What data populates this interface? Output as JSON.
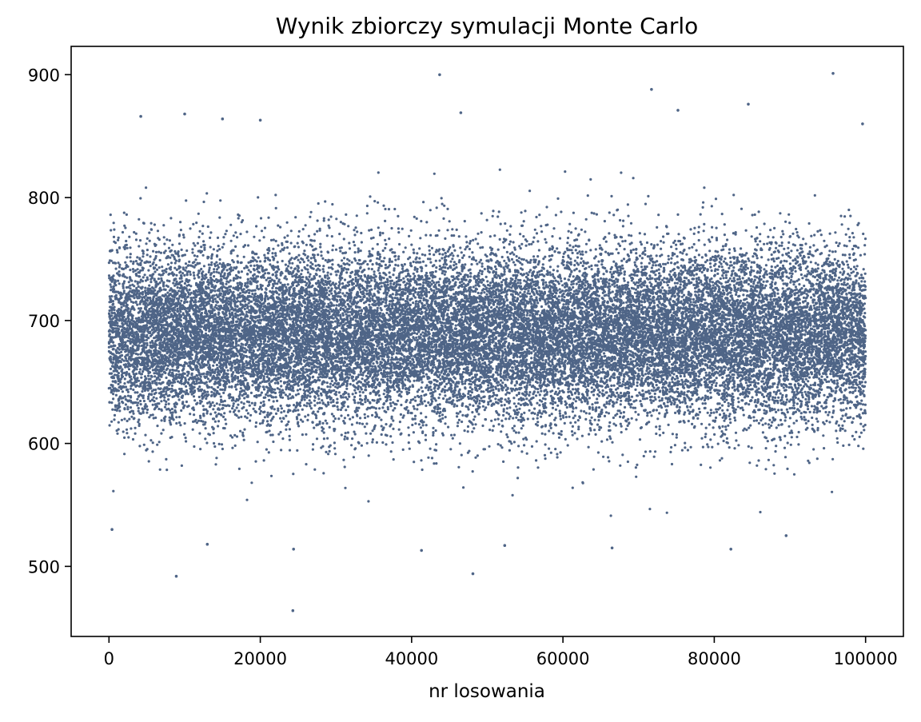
{
  "chart_data": {
    "type": "scatter",
    "title": "Wynik zbiorczy symulacji Monte Carlo",
    "xlabel": "nr losowania",
    "ylabel": "",
    "xlim": [
      -5000,
      105000
    ],
    "ylim": [
      443,
      923
    ],
    "x_ticks": [
      0,
      20000,
      40000,
      60000,
      80000,
      100000
    ],
    "y_ticks": [
      500,
      600,
      700,
      800,
      900
    ],
    "grid": false,
    "legend": "none",
    "marker_color": "#4f6587",
    "n_points": 100000,
    "distribution": {
      "x_range": [
        0,
        100000
      ],
      "y_mean": 688,
      "y_std": 35
    },
    "outliers": [
      {
        "x": 4200,
        "y": 866
      },
      {
        "x": 10000,
        "y": 868
      },
      {
        "x": 43700,
        "y": 900
      },
      {
        "x": 71700,
        "y": 888
      },
      {
        "x": 75200,
        "y": 871
      },
      {
        "x": 84500,
        "y": 876
      },
      {
        "x": 95700,
        "y": 901
      },
      {
        "x": 99600,
        "y": 860
      },
      {
        "x": 46500,
        "y": 869
      },
      {
        "x": 15000,
        "y": 864
      },
      {
        "x": 20000,
        "y": 863
      },
      {
        "x": 8900,
        "y": 492
      },
      {
        "x": 24300,
        "y": 464
      },
      {
        "x": 48100,
        "y": 494
      },
      {
        "x": 41300,
        "y": 513
      },
      {
        "x": 24400,
        "y": 514
      },
      {
        "x": 82200,
        "y": 514
      },
      {
        "x": 66500,
        "y": 515
      },
      {
        "x": 13000,
        "y": 518
      },
      {
        "x": 52300,
        "y": 517
      },
      {
        "x": 89500,
        "y": 525
      },
      {
        "x": 400,
        "y": 530
      }
    ]
  }
}
